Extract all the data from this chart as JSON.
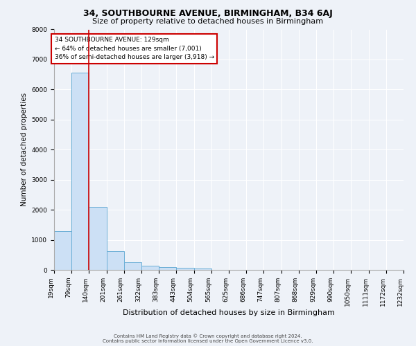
{
  "title": "34, SOUTHBOURNE AVENUE, BIRMINGHAM, B34 6AJ",
  "subtitle": "Size of property relative to detached houses in Birmingham",
  "xlabel": "Distribution of detached houses by size in Birmingham",
  "ylabel": "Number of detached properties",
  "bar_values": [
    1300,
    6550,
    2100,
    620,
    260,
    130,
    100,
    80,
    50,
    0,
    0,
    0,
    0,
    0,
    0,
    0,
    0,
    0,
    0,
    0
  ],
  "bar_labels": [
    "19sqm",
    "79sqm",
    "140sqm",
    "201sqm",
    "261sqm",
    "322sqm",
    "383sqm",
    "443sqm",
    "504sqm",
    "565sqm",
    "625sqm",
    "686sqm",
    "747sqm",
    "807sqm",
    "868sqm",
    "929sqm",
    "990sqm",
    "1050sqm",
    "1111sqm",
    "1172sqm",
    "1232sqm"
  ],
  "bar_color": "#cce0f5",
  "bar_edge_color": "#6aaed6",
  "property_line_x": 2.0,
  "property_line_color": "#cc0000",
  "annotation_text": "34 SOUTHBOURNE AVENUE: 129sqm\n← 64% of detached houses are smaller (7,001)\n36% of semi-detached houses are larger (3,918) →",
  "annotation_box_color": "#cc0000",
  "ylim": [
    0,
    8000
  ],
  "yticks": [
    0,
    1000,
    2000,
    3000,
    4000,
    5000,
    6000,
    7000,
    8000
  ],
  "footer_line1": "Contains HM Land Registry data © Crown copyright and database right 2024.",
  "footer_line2": "Contains public sector information licensed under the Open Government Licence v3.0.",
  "bg_color": "#eef2f8",
  "plot_bg_color": "#eef2f8",
  "grid_color": "#ffffff",
  "title_fontsize": 9,
  "subtitle_fontsize": 8,
  "xlabel_fontsize": 8,
  "ylabel_fontsize": 7.5,
  "tick_fontsize": 6.5,
  "annotation_fontsize": 6.5,
  "footer_fontsize": 5.0
}
